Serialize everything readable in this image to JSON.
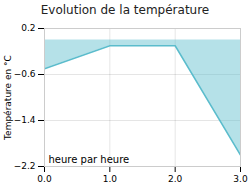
{
  "chart_data": {
    "type": "line",
    "title": "Evolution de la température",
    "ylabel": "Température en °C",
    "annotations": [
      "heure par heure"
    ],
    "x": [
      0,
      1,
      2,
      3
    ],
    "values": [
      -0.5,
      -0.1,
      -0.1,
      -2.0
    ],
    "color": "#5bbccc",
    "xlim": [
      0,
      3
    ],
    "ylim": [
      -2.2,
      0.2
    ],
    "xticks": [
      0,
      1,
      2,
      3
    ],
    "yticks": [
      0.2,
      -0.6,
      -1.4,
      -2.2
    ],
    "grid": true
  }
}
